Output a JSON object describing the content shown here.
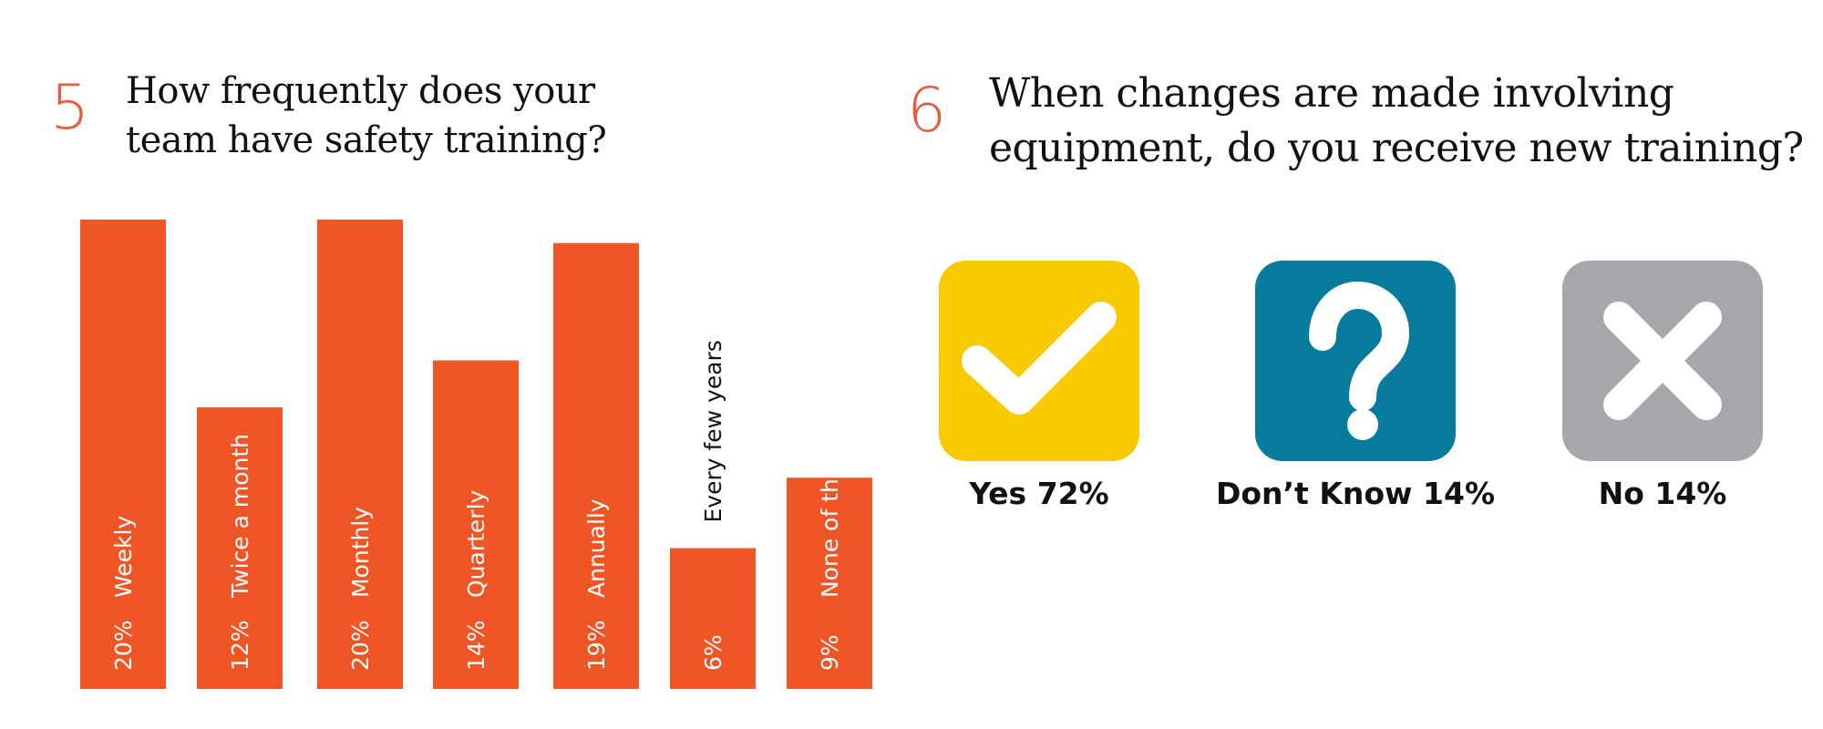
{
  "question5": {
    "number": "5",
    "text": "How frequently does your\nteam have safety training?"
  },
  "question6": {
    "number": "6",
    "text": "When changes are made involving\nequipment, do you receive new training?"
  },
  "colors": {
    "bar": "#ef5525",
    "number": "#e0603f",
    "yes": "#f9c900",
    "dont_know": "#077b9b",
    "no": "#a6a7aa"
  },
  "chart_data": [
    {
      "type": "bar",
      "title": "How frequently does your team have safety training?",
      "categories": [
        "Weekly",
        "Twice a month",
        "Monthly",
        "Quarterly",
        "Annually",
        "Every few years",
        "None of the above"
      ],
      "values": [
        20,
        12,
        20,
        14,
        19,
        6,
        9
      ],
      "value_labels": [
        "20%",
        "12%",
        "20%",
        "14%",
        "19%",
        "6%",
        "9%"
      ],
      "ylim": [
        0,
        20
      ]
    },
    {
      "type": "table",
      "title": "When changes are made involving equipment, do you receive new training?",
      "categories": [
        "Yes",
        "Don’t Know",
        "No"
      ],
      "values": [
        72,
        14,
        14
      ],
      "labels": [
        "Yes 72%",
        "Don’t Know 14%",
        "No 14%"
      ],
      "icons": [
        "checkmark-icon",
        "question-mark-icon",
        "x-mark-icon"
      ]
    }
  ]
}
